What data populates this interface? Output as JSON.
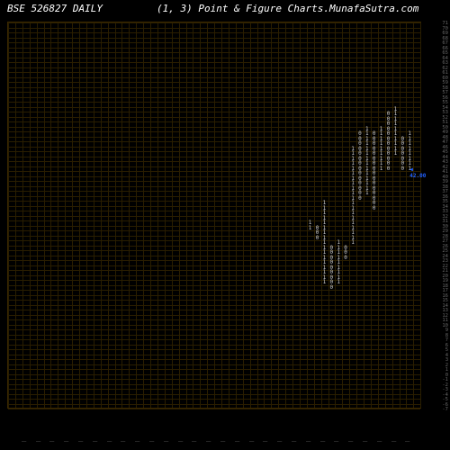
{
  "header": {
    "title": "BSE 526827 DAILY",
    "subtitle": "(1,  3) Point & Figure    Charts.MunafaSutra.com"
  },
  "chart": {
    "type": "point-and-figure",
    "background_color": "#000000",
    "grid_color": "#2a1e00",
    "border_color": "#3a2800",
    "text_color": "#cccccc",
    "marker_color": "#2060ff",
    "grid_rows": 78,
    "grid_cols": 58,
    "cell_w": 7.9,
    "cell_h": 5.5,
    "price_marker": {
      "text": "42.00",
      "col": 57,
      "row": 29
    },
    "y_axis": {
      "values": [
        71,
        70,
        69,
        68,
        67,
        66,
        65,
        64,
        63,
        62,
        61,
        60,
        59,
        58,
        57,
        56,
        55,
        54,
        53,
        52,
        51,
        50,
        49,
        48,
        47,
        46,
        45,
        44,
        43,
        42,
        41,
        40,
        39,
        38,
        37,
        36,
        35,
        34,
        33,
        32,
        31,
        30,
        29,
        28,
        27,
        26,
        25,
        24,
        23,
        22,
        21,
        20,
        19,
        18,
        17,
        16,
        15,
        14,
        13,
        12,
        11,
        10,
        9,
        8,
        7,
        6,
        5,
        4,
        3,
        2,
        1,
        0,
        -1,
        -2,
        -3,
        -4,
        -5,
        -6,
        -7
      ]
    },
    "columns": [
      {
        "col": 42,
        "symbol": "1",
        "rows": [
          40,
          41
        ]
      },
      {
        "col": 43,
        "symbol": "0",
        "rows": [
          41,
          42,
          43
        ]
      },
      {
        "col": 44,
        "symbol": "1",
        "rows": [
          36,
          37,
          38,
          39,
          40,
          41,
          42,
          43,
          44,
          45,
          46,
          47,
          48,
          49,
          50,
          51,
          52
        ]
      },
      {
        "col": 45,
        "symbol": "0",
        "rows": [
          45,
          46,
          47,
          48,
          49,
          50,
          51,
          52,
          53
        ]
      },
      {
        "col": 46,
        "symbol": "1",
        "rows": [
          44,
          45,
          46,
          47,
          48,
          49,
          50,
          51,
          52
        ]
      },
      {
        "col": 47,
        "symbol": "0",
        "rows": [
          45,
          46,
          47
        ]
      },
      {
        "col": 48,
        "symbol": "1",
        "rows": [
          25,
          26,
          27,
          28,
          29,
          30,
          31,
          32,
          33,
          34,
          35,
          36,
          37,
          38,
          39,
          40,
          41,
          42,
          43,
          44
        ]
      },
      {
        "col": 49,
        "symbol": "0",
        "rows": [
          22,
          23,
          24,
          25,
          26,
          27,
          28,
          29,
          30,
          31,
          32,
          33,
          34,
          35
        ]
      },
      {
        "col": 50,
        "symbol": "1",
        "rows": [
          21,
          22,
          23,
          24,
          25,
          26,
          27,
          28,
          29,
          30,
          31,
          32,
          33,
          34
        ]
      },
      {
        "col": 51,
        "symbol": "0",
        "rows": [
          22,
          23,
          24,
          25,
          26,
          27,
          28,
          29,
          30,
          31,
          32,
          33,
          34,
          35,
          36,
          37
        ]
      },
      {
        "col": 52,
        "symbol": "1",
        "rows": [
          21,
          22,
          23,
          24,
          25,
          26,
          27,
          28,
          29
        ]
      },
      {
        "col": 53,
        "symbol": "0",
        "rows": [
          18,
          19,
          20,
          21,
          22,
          23,
          24,
          25,
          26,
          27,
          28,
          29
        ]
      },
      {
        "col": 54,
        "symbol": "1",
        "rows": [
          17,
          18,
          19,
          20,
          21,
          22,
          23,
          24,
          25,
          26
        ]
      },
      {
        "col": 55,
        "symbol": "0",
        "rows": [
          23,
          24,
          25,
          26,
          27,
          28,
          29
        ]
      },
      {
        "col": 56,
        "symbol": "1",
        "rows": [
          22,
          23,
          24,
          25,
          26,
          27,
          28,
          29
        ]
      }
    ]
  }
}
